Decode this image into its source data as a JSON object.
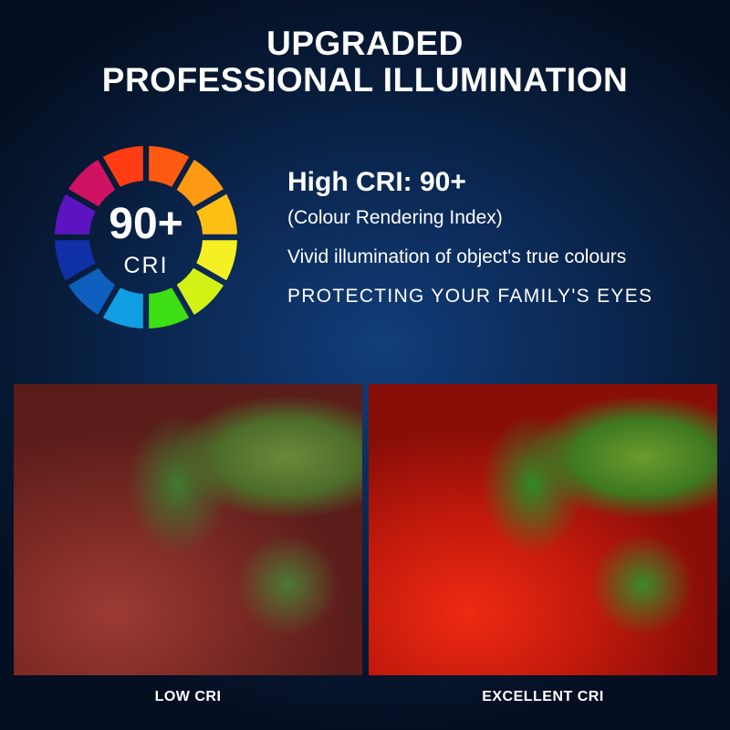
{
  "header": {
    "title_line1": "UPGRADED",
    "title_line2": "PROFESSIONAL ILLUMINATION"
  },
  "cri_badge": {
    "value": "90+",
    "label": "CRI",
    "segment_colors": [
      "#ff5a12",
      "#ff9a14",
      "#ffbf12",
      "#f4f024",
      "#d2f216",
      "#3ee014",
      "#109ee2",
      "#0f5fbe",
      "#1030a8",
      "#5c14c0",
      "#cf1262",
      "#ff3c12"
    ]
  },
  "features": {
    "heading": "High CRI: 90+",
    "subheading": "(Colour Rendering Index)",
    "line1": "Vivid illumination of object's true colours",
    "line2": "PROTECTING YOUR FAMILY'S EYES"
  },
  "comparison": {
    "left_label": "LOW CRI",
    "right_label": "EXCELLENT CRI"
  }
}
